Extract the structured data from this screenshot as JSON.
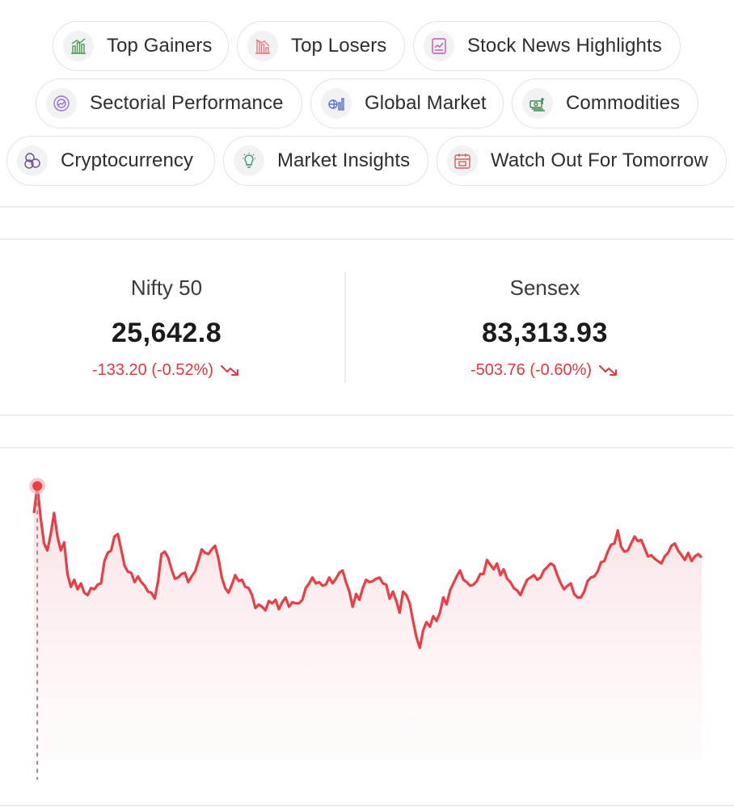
{
  "chips": [
    {
      "label": "Top Gainers",
      "icon": "bar-chart-up-icon"
    },
    {
      "label": "Top Losers",
      "icon": "bar-chart-down-icon"
    },
    {
      "label": "Stock News Highlights",
      "icon": "news-chart-icon"
    },
    {
      "label": "Sectorial Performance",
      "icon": "gauge-icon"
    },
    {
      "label": "Global Market",
      "icon": "globe-chart-icon"
    },
    {
      "label": "Commodities",
      "icon": "money-stack-icon"
    },
    {
      "label": "Cryptocurrency",
      "icon": "crypto-coins-icon"
    },
    {
      "label": "Market Insights",
      "icon": "lightbulb-icon"
    },
    {
      "label": "Watch Out For Tomorrow",
      "icon": "calendar-icon"
    }
  ],
  "indices": [
    {
      "name": "Nifty 50",
      "value": "25,642.8",
      "change": "-133.20 (-0.52%)"
    },
    {
      "name": "Sensex",
      "value": "83,313.93",
      "change": "-503.76 (-0.60%)"
    }
  ],
  "colors": {
    "negative": "#e5353f",
    "line": "#ec3d47",
    "chip_border": "#e3e3e3"
  },
  "chart_data": {
    "type": "line",
    "title": "",
    "xlabel": "",
    "ylabel": "",
    "grid": false,
    "legend": "none",
    "ylim": [
      25600,
      25810
    ],
    "x": [
      0,
      1,
      2,
      3,
      4,
      5,
      6,
      7,
      8,
      9,
      10,
      11,
      12,
      13,
      14,
      15,
      16,
      17,
      18,
      19,
      20,
      21,
      22,
      23,
      24,
      25,
      26,
      27,
      28,
      29,
      30,
      31,
      32,
      33,
      34,
      35,
      36,
      37,
      38,
      39,
      40,
      41,
      42,
      43,
      44,
      45,
      46,
      47,
      48,
      49,
      50,
      51,
      52,
      53,
      54,
      55,
      56,
      57,
      58,
      59,
      60,
      61,
      62,
      63,
      64,
      65,
      66,
      67,
      68,
      69,
      70,
      71,
      72,
      73,
      74,
      75,
      76,
      77,
      78,
      79,
      80,
      81,
      82,
      83,
      84,
      85,
      86,
      87,
      88,
      89,
      90,
      91,
      92,
      93,
      94,
      95,
      96,
      97,
      98,
      99,
      100,
      101,
      102,
      103,
      104,
      105,
      106,
      107,
      108,
      109,
      110,
      111,
      112,
      113,
      114,
      115,
      116,
      117,
      118,
      119,
      120,
      121,
      122,
      123,
      124,
      125,
      126,
      127,
      128,
      129,
      130,
      131,
      132,
      133,
      134,
      135,
      136,
      137,
      138,
      139,
      140,
      141,
      142,
      143,
      144,
      145,
      146,
      147,
      148,
      149,
      150,
      151,
      152,
      153,
      154,
      155,
      156,
      157,
      158,
      159,
      160,
      161,
      162,
      163,
      164,
      165,
      166,
      167,
      168,
      169,
      170,
      171,
      172,
      173,
      174,
      175,
      176,
      177,
      178,
      179,
      180,
      181,
      182,
      183,
      184,
      185,
      186,
      187,
      188,
      189,
      190,
      191,
      192,
      193,
      194,
      195,
      196,
      197,
      198,
      199
    ],
    "series": [
      {
        "values": [
          25786,
          25809,
          25782,
          25760,
          25754,
          25768,
          25786,
          25766,
          25754,
          25761,
          25734,
          25723,
          25729,
          25721,
          25726,
          25718,
          25716,
          25722,
          25721,
          25725,
          25726,
          25745,
          25752,
          25754,
          25766,
          25768,
          25755,
          25741,
          25736,
          25735,
          25727,
          25732,
          25727,
          25724,
          25719,
          25718,
          25713,
          25728,
          25751,
          25753,
          25748,
          25738,
          25730,
          25731,
          25734,
          25735,
          25727,
          25732,
          25736,
          25745,
          25755,
          25752,
          25751,
          25755,
          25758,
          25747,
          25731,
          25722,
          25718,
          25725,
          25733,
          25728,
          25729,
          25723,
          25722,
          25716,
          25705,
          25708,
          25706,
          25703,
          25711,
          25709,
          25712,
          25704,
          25710,
          25714,
          25706,
          25710,
          25709,
          25709,
          25712,
          25722,
          25726,
          25731,
          25726,
          25727,
          25724,
          25725,
          25731,
          25726,
          25730,
          25735,
          25737,
          25727,
          25719,
          25706,
          25717,
          25712,
          25722,
          25729,
          25727,
          25728,
          25730,
          25731,
          25726,
          25725,
          25713,
          25719,
          25711,
          25701,
          25719,
          25716,
          25709,
          25694,
          25680,
          25671,
          25686,
          25693,
          25689,
          25698,
          25694,
          25701,
          25714,
          25708,
          25720,
          25726,
          25732,
          25737,
          25729,
          25727,
          25724,
          25725,
          25728,
          25734,
          25734,
          25746,
          25742,
          25738,
          25743,
          25733,
          25738,
          25730,
          25727,
          25722,
          25720,
          25716,
          25723,
          25729,
          25731,
          25733,
          25729,
          25731,
          25737,
          25740,
          25743,
          25741,
          25733,
          25726,
          25721,
          25724,
          25726,
          25717,
          25714,
          25714,
          25719,
          25728,
          25731,
          25732,
          25736,
          25744,
          25745,
          25753,
          25759,
          25760,
          25771,
          25757,
          25753,
          25754,
          25760,
          25766,
          25762,
          25763,
          25756,
          25749,
          25750,
          25747,
          25745,
          25743,
          25749,
          25752,
          25758,
          25760,
          25754,
          25750,
          25746,
          25752,
          25745,
          25749,
          25751,
          25748
        ]
      }
    ]
  }
}
